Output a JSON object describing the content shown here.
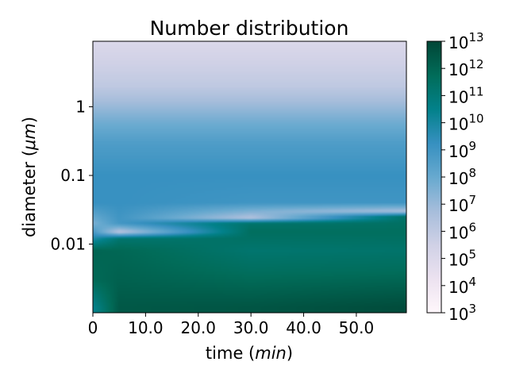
{
  "chart_data": {
    "type": "heatmap",
    "title": "Number distribution",
    "xlabel": {
      "prefix": "time (",
      "italic": "min",
      "suffix": ")"
    },
    "ylabel": {
      "prefix": "diameter (",
      "italic": "μm",
      "suffix": ")"
    },
    "x_range": [
      0,
      59.5
    ],
    "x_ticks": [
      {
        "value": 0,
        "label": "0"
      },
      {
        "value": 10,
        "label": "10.0"
      },
      {
        "value": 20,
        "label": "20.0"
      },
      {
        "value": 30,
        "label": "30.0"
      },
      {
        "value": 40,
        "label": "40.0"
      },
      {
        "value": 50,
        "label": "50.0"
      }
    ],
    "y_scale": "log",
    "y_range": [
      0.001,
      9
    ],
    "y_ticks": [
      {
        "value": 0.01,
        "label": "0.01"
      },
      {
        "value": 0.1,
        "label": "0.1"
      },
      {
        "value": 1,
        "label": "1"
      }
    ],
    "colorbar": {
      "scale": "log",
      "range": [
        1000,
        10000000000000
      ],
      "colormap": "PuBuGn",
      "ticks": [
        {
          "base": "10",
          "exp": "3"
        },
        {
          "base": "10",
          "exp": "4"
        },
        {
          "base": "10",
          "exp": "5"
        },
        {
          "base": "10",
          "exp": "6"
        },
        {
          "base": "10",
          "exp": "7"
        },
        {
          "base": "10",
          "exp": "8"
        },
        {
          "base": "10",
          "exp": "9"
        },
        {
          "base": "10",
          "exp": "10"
        },
        {
          "base": "10",
          "exp": "11"
        },
        {
          "base": "10",
          "exp": "12"
        },
        {
          "base": "10",
          "exp": "13"
        }
      ]
    },
    "approx_log10_value_profiles": [
      {
        "time": 0,
        "diameter": [
          0.0012,
          0.003,
          0.008,
          0.012,
          0.02,
          0.04,
          0.1,
          0.3,
          0.6,
          1,
          2,
          9
        ],
        "log10_N": [
          10.4,
          11.8,
          12.0,
          9.8,
          7.6,
          9.2,
          9.2,
          8.6,
          7.8,
          7.0,
          6.0,
          5.0
        ]
      },
      {
        "time": 5,
        "diameter": [
          0.0012,
          0.003,
          0.008,
          0.012,
          0.015,
          0.02,
          0.04,
          0.1,
          0.3,
          0.6,
          1,
          2,
          9
        ],
        "log10_N": [
          12.4,
          12.1,
          11.9,
          11.2,
          6.2,
          8.9,
          9.2,
          9.2,
          8.6,
          7.8,
          7.0,
          6.0,
          5.0
        ]
      },
      {
        "time": 30,
        "diameter": [
          0.0012,
          0.004,
          0.008,
          0.015,
          0.02,
          0.024,
          0.04,
          0.1,
          0.3,
          0.6,
          1,
          2,
          9
        ],
        "log10_N": [
          12.5,
          11.6,
          11.2,
          11.6,
          11.3,
          6.4,
          9.0,
          9.2,
          8.6,
          7.8,
          7.0,
          6.0,
          5.0
        ]
      },
      {
        "time": 59.5,
        "diameter": [
          0.0012,
          0.004,
          0.008,
          0.015,
          0.025,
          0.03,
          0.04,
          0.1,
          0.3,
          0.6,
          1,
          2,
          9
        ],
        "log10_N": [
          12.8,
          11.7,
          11.3,
          11.6,
          11.4,
          6.6,
          9.0,
          9.2,
          8.6,
          7.8,
          7.0,
          6.0,
          5.0
        ]
      }
    ]
  }
}
